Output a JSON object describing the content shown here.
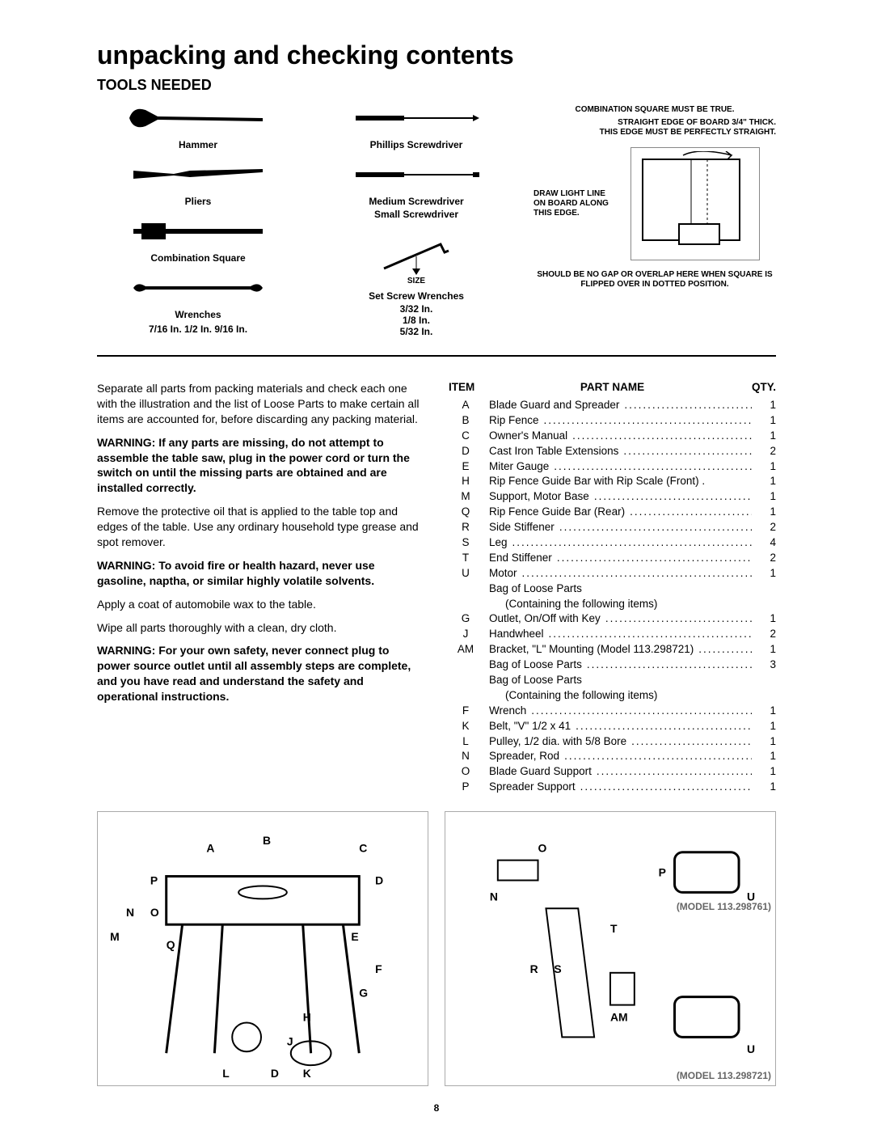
{
  "title": "unpacking and checking contents",
  "subtitle": "TOOLS NEEDED",
  "tools": {
    "hammer": "Hammer",
    "pliers": "Pliers",
    "comb_square": "Combination  Square",
    "wrenches": "Wrenches",
    "wrenches_sizes": "7/16  In.  1/2  In.  9/16  In.",
    "phillips": "Phillips  Screwdriver",
    "med_screw": "Medium  Screwdriver",
    "small_screw": "Small  Screwdriver",
    "size": "SIZE",
    "setscrew": "Set Screw  Wrenches",
    "setscrew_sizes1": "3/32  In.",
    "setscrew_sizes2": "1/8    In.",
    "setscrew_sizes3": "5/32  In."
  },
  "square_notes": {
    "top": "COMBINATION SQUARE MUST BE TRUE.",
    "right": "STRAIGHT EDGE OF BOARD 3/4\" THICK. THIS EDGE MUST BE PERFECTLY STRAIGHT.",
    "left": "DRAW LIGHT LINE ON BOARD ALONG THIS EDGE.",
    "bottom": "SHOULD BE NO GAP OR OVERLAP HERE WHEN SQUARE IS FLIPPED OVER IN DOTTED POSITION."
  },
  "left_paragraphs": {
    "p1": "Separate all parts from packing materials and check each one with the illustration and the list of Loose Parts to make certain all items are accounted for, before discarding any packing material.",
    "p2": "WARNING: If any parts are missing, do not attempt to assemble the table saw, plug in the power cord or turn the switch on until the missing parts are obtained and are installed correctly.",
    "p3": "Remove the protective oil that is applied to the table top and edges of the table. Use any ordinary household type grease and spot remover.",
    "p4": "WARNING: To avoid fire or health hazard, never use gasoline, naptha, or similar highly volatile solvents.",
    "p5": "Apply a coat of automobile wax to the table.",
    "p6": "Wipe all parts thoroughly with a clean, dry cloth.",
    "p7": "WARNING: For your own safety, never connect plug to power source outlet until all assembly steps are complete, and you have read and understand the safety and operational instructions."
  },
  "parts_headers": {
    "item": "ITEM",
    "name": "PART NAME",
    "qty": "QTY."
  },
  "parts": [
    {
      "item": "A",
      "name": "Blade Guard and Spreader",
      "qty": "1"
    },
    {
      "item": "B",
      "name": "Rip Fence",
      "qty": "1"
    },
    {
      "item": "C",
      "name": "Owner's Manual",
      "qty": "1"
    },
    {
      "item": "D",
      "name": "Cast Iron Table Extensions",
      "qty": "2"
    },
    {
      "item": "E",
      "name": "Miter Gauge",
      "qty": "1"
    },
    {
      "item": "H",
      "name": "Rip Fence Guide Bar with Rip Scale (Front) .",
      "qty": "1",
      "nodots": true
    },
    {
      "item": "M",
      "name": "Support, Motor Base",
      "qty": "1"
    },
    {
      "item": "Q",
      "name": "Rip Fence Guide Bar (Rear)",
      "qty": "1"
    },
    {
      "item": "R",
      "name": "Side Stiffener",
      "qty": "2"
    },
    {
      "item": "S",
      "name": "Leg",
      "qty": "4"
    },
    {
      "item": "T",
      "name": "End Stiffener",
      "qty": "2"
    },
    {
      "item": "U",
      "name": "Motor",
      "qty": "1"
    },
    {
      "item": "",
      "name": "Bag of Loose Parts",
      "qty": "",
      "nodots": true
    },
    {
      "item": "",
      "name": "(Containing the following items)",
      "qty": "",
      "indent": true,
      "nodots": true
    },
    {
      "item": "G",
      "name": "Outlet, On/Off with Key",
      "qty": "1"
    },
    {
      "item": "J",
      "name": "Handwheel",
      "qty": "2"
    },
    {
      "item": "AM",
      "name": "Bracket, \"L\" Mounting (Model 113.298721)",
      "qty": "1"
    },
    {
      "item": "",
      "name": "Bag of Loose Parts",
      "qty": "3"
    },
    {
      "item": "",
      "name": "Bag of Loose Parts",
      "qty": "",
      "nodots": true
    },
    {
      "item": "",
      "name": "(Containing the following items)",
      "qty": "",
      "indent": true,
      "nodots": true
    },
    {
      "item": "F",
      "name": "Wrench",
      "qty": "1"
    },
    {
      "item": "K",
      "name": "Belt, \"V\" 1/2 x 41",
      "qty": "1"
    },
    {
      "item": "L",
      "name": "Pulley, 1/2 dia. with 5/8 Bore",
      "qty": "1"
    },
    {
      "item": "N",
      "name": "Spreader, Rod",
      "qty": "1"
    },
    {
      "item": "O",
      "name": "Blade Guard Support",
      "qty": "1"
    },
    {
      "item": "P",
      "name": "Spreader Support",
      "qty": "1"
    }
  ],
  "models": {
    "m1": "(MODEL  113.298761)",
    "m2": "(MODEL  113.298721)"
  },
  "pagenum": "8"
}
